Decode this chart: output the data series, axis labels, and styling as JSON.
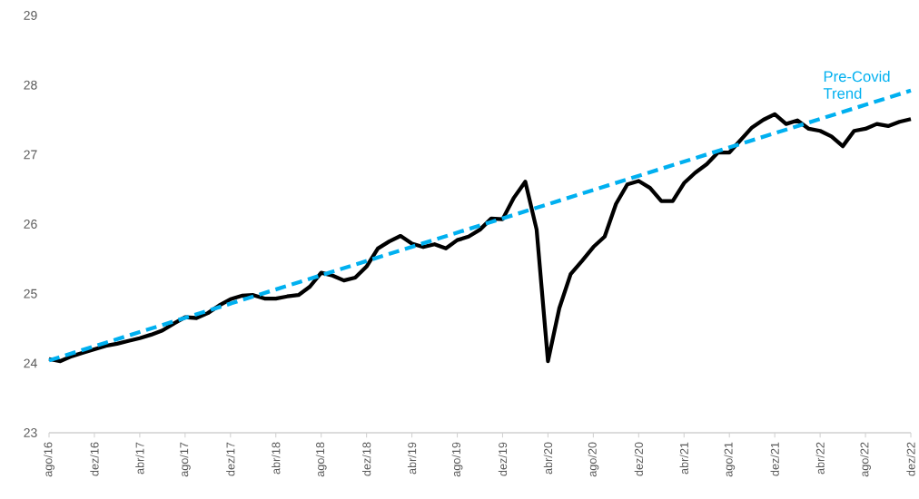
{
  "chart_data": {
    "type": "line",
    "x": [
      "2016-08",
      "2016-09",
      "2016-10",
      "2016-11",
      "2016-12",
      "2017-01",
      "2017-02",
      "2017-03",
      "2017-04",
      "2017-05",
      "2017-06",
      "2017-07",
      "2017-08",
      "2017-09",
      "2017-10",
      "2017-11",
      "2017-12",
      "2018-01",
      "2018-02",
      "2018-03",
      "2018-04",
      "2018-05",
      "2018-06",
      "2018-07",
      "2018-08",
      "2018-09",
      "2018-10",
      "2018-11",
      "2018-12",
      "2019-01",
      "2019-02",
      "2019-03",
      "2019-04",
      "2019-05",
      "2019-06",
      "2019-07",
      "2019-08",
      "2019-09",
      "2019-10",
      "2019-11",
      "2019-12",
      "2020-01",
      "2020-02",
      "2020-03",
      "2020-04",
      "2020-05",
      "2020-06",
      "2020-07",
      "2020-08",
      "2020-09",
      "2020-10",
      "2020-11",
      "2020-12",
      "2021-01",
      "2021-02",
      "2021-03",
      "2021-04",
      "2021-05",
      "2021-06",
      "2021-07",
      "2021-08",
      "2021-09",
      "2021-10",
      "2021-11",
      "2021-12",
      "2022-01",
      "2022-02",
      "2022-03",
      "2022-04",
      "2022-05",
      "2022-06",
      "2022-07",
      "2022-08",
      "2022-09",
      "2022-10",
      "2022-11",
      "2022-12"
    ],
    "series": [
      {
        "color": "#000000",
        "line_style": "solid",
        "values": [
          24.06,
          24.03,
          24.1,
          24.15,
          24.2,
          24.25,
          24.28,
          24.32,
          24.36,
          24.41,
          24.47,
          24.57,
          24.66,
          24.65,
          24.72,
          24.83,
          24.92,
          24.97,
          24.98,
          24.93,
          24.93,
          24.96,
          24.98,
          25.1,
          25.3,
          25.26,
          25.19,
          25.23,
          25.39,
          25.65,
          25.75,
          25.83,
          25.72,
          25.67,
          25.71,
          25.65,
          25.77,
          25.82,
          25.92,
          26.08,
          26.07,
          26.38,
          26.61,
          25.92,
          24.03,
          24.79,
          25.28,
          25.47,
          25.67,
          25.82,
          26.29,
          26.57,
          26.62,
          26.52,
          26.33,
          26.33,
          26.59,
          26.74,
          26.86,
          27.03,
          27.03,
          27.21,
          27.39,
          27.5,
          27.58,
          27.44,
          27.49,
          27.37,
          27.34,
          27.26,
          27.12,
          27.34,
          27.37,
          27.44,
          27.41,
          27.47,
          27.51
        ]
      },
      {
        "name": "Pre-Covid Trend",
        "color": "#00b0f0",
        "line_style": "dashed",
        "x": [
          "2016-08",
          "2022-12"
        ],
        "values": [
          24.04,
          27.92
        ]
      }
    ],
    "xlim": [
      "2016-08",
      "2022-12"
    ],
    "xticks": [
      {
        "value": "2016-08",
        "label": "ago/16"
      },
      {
        "value": "2016-12",
        "label": "dez/16"
      },
      {
        "value": "2017-04",
        "label": "abr/17"
      },
      {
        "value": "2017-08",
        "label": "ago/17"
      },
      {
        "value": "2017-12",
        "label": "dez/17"
      },
      {
        "value": "2018-04",
        "label": "abr/18"
      },
      {
        "value": "2018-08",
        "label": "ago/18"
      },
      {
        "value": "2018-12",
        "label": "dez/18"
      },
      {
        "value": "2019-04",
        "label": "abr/19"
      },
      {
        "value": "2019-08",
        "label": "ago/19"
      },
      {
        "value": "2019-12",
        "label": "dez/19"
      },
      {
        "value": "2020-04",
        "label": "abr/20"
      },
      {
        "value": "2020-08",
        "label": "ago/20"
      },
      {
        "value": "2020-12",
        "label": "dez/20"
      },
      {
        "value": "2021-04",
        "label": "abr/21"
      },
      {
        "value": "2021-08",
        "label": "ago/21"
      },
      {
        "value": "2021-12",
        "label": "dez/21"
      },
      {
        "value": "2022-04",
        "label": "abr/22"
      },
      {
        "value": "2022-08",
        "label": "ago/22"
      },
      {
        "value": "2022-12",
        "label": "dez/22"
      }
    ],
    "ylim": [
      23,
      29
    ],
    "yticks": [
      23,
      24,
      25,
      26,
      27,
      28,
      29
    ],
    "grid": false,
    "legend": false,
    "marker": "none"
  }
}
